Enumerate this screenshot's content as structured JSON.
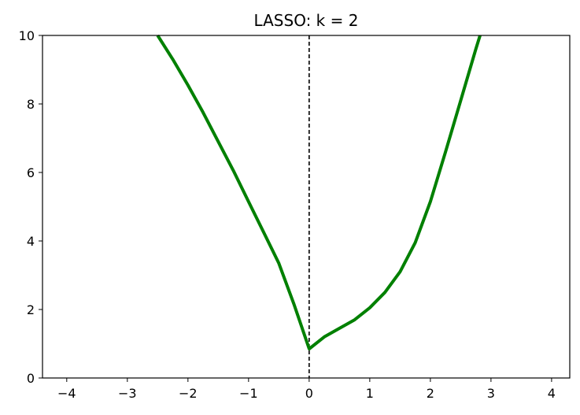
{
  "chart_data": {
    "type": "line",
    "title": "LASSO: k = 2",
    "xlabel": "",
    "ylabel": "",
    "xlim": [
      -4.4,
      4.3
    ],
    "ylim": [
      0,
      10
    ],
    "x_ticks": [
      -4,
      -3,
      -2,
      -1,
      0,
      1,
      2,
      3,
      4
    ],
    "x_tick_labels": [
      "−4",
      "−3",
      "−2",
      "−1",
      "0",
      "1",
      "2",
      "3",
      "4"
    ],
    "y_ticks": [
      0,
      2,
      4,
      6,
      8,
      10
    ],
    "y_tick_labels": [
      "0",
      "2",
      "4",
      "6",
      "8",
      "10"
    ],
    "grid": false,
    "series": [
      {
        "color": "#008000",
        "x": [
          -2.5,
          -2.25,
          -2.0,
          -1.75,
          -1.5,
          -1.25,
          -1.0,
          -0.75,
          -0.5,
          -0.25,
          0.0,
          0.25,
          0.5,
          0.75,
          1.0,
          1.25,
          1.5,
          1.75,
          2.0,
          2.25,
          2.5,
          2.75,
          2.82
        ],
        "y": [
          10.0,
          9.3,
          8.55,
          7.75,
          6.9,
          6.05,
          5.15,
          4.25,
          3.35,
          2.15,
          0.85,
          1.2,
          1.45,
          1.7,
          2.05,
          2.5,
          3.1,
          3.95,
          5.15,
          6.6,
          8.1,
          9.6,
          10.0
        ]
      }
    ],
    "vertical_line": {
      "x": 0,
      "style": "dashed",
      "color": "#000000"
    }
  }
}
